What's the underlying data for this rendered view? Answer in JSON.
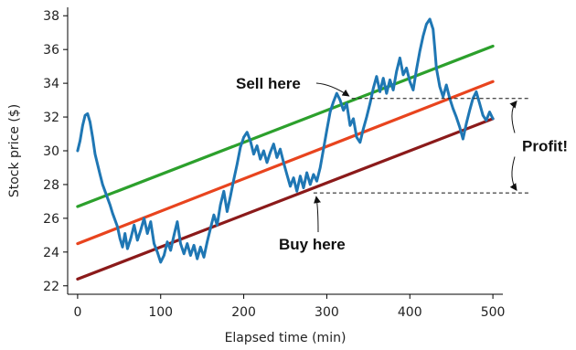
{
  "chart_data": {
    "type": "line",
    "title": "",
    "xlabel": "Elapsed time (min)",
    "ylabel": "Stock price ($)",
    "xlim": [
      -12,
      512
    ],
    "ylim": [
      21.5,
      38.5
    ],
    "xticks": [
      0,
      100,
      200,
      300,
      400,
      500
    ],
    "yticks": [
      22,
      24,
      26,
      28,
      30,
      32,
      34,
      36,
      38
    ],
    "grid": false,
    "series": [
      {
        "color": "#1f77b4",
        "x": [
          0,
          3,
          6,
          9,
          12,
          15,
          18,
          21,
          24,
          27,
          30,
          33,
          36,
          39,
          42,
          45,
          48,
          51,
          54,
          57,
          60,
          64,
          68,
          72,
          76,
          80,
          84,
          88,
          92,
          96,
          100,
          104,
          108,
          112,
          116,
          120,
          124,
          128,
          132,
          136,
          140,
          144,
          148,
          152,
          156,
          160,
          164,
          168,
          172,
          176,
          180,
          184,
          188,
          192,
          196,
          200,
          204,
          208,
          212,
          216,
          220,
          224,
          228,
          232,
          236,
          240,
          244,
          248,
          252,
          256,
          260,
          264,
          268,
          272,
          276,
          280,
          284,
          288,
          292,
          296,
          300,
          304,
          308,
          312,
          316,
          320,
          324,
          328,
          332,
          336,
          340,
          344,
          348,
          352,
          356,
          360,
          364,
          368,
          372,
          376,
          380,
          384,
          388,
          392,
          396,
          400,
          404,
          408,
          412,
          416,
          420,
          424,
          428,
          430,
          432,
          436,
          440,
          444,
          448,
          452,
          456,
          460,
          464,
          468,
          472,
          476,
          480,
          484,
          488,
          492,
          496,
          500
        ],
        "values": [
          30.0,
          30.6,
          31.5,
          32.1,
          32.2,
          31.7,
          30.8,
          29.8,
          29.2,
          28.6,
          28.0,
          27.6,
          27.2,
          26.8,
          26.3,
          25.9,
          25.5,
          24.8,
          24.3,
          25.1,
          24.2,
          24.8,
          25.6,
          24.7,
          25.3,
          26.0,
          25.1,
          25.8,
          24.5,
          24.0,
          23.4,
          23.8,
          24.6,
          24.1,
          25.0,
          25.8,
          24.5,
          23.9,
          24.5,
          23.8,
          24.4,
          23.6,
          24.3,
          23.7,
          24.6,
          25.4,
          26.2,
          25.6,
          26.8,
          27.6,
          26.4,
          27.3,
          28.3,
          29.2,
          30.2,
          30.8,
          31.1,
          30.6,
          29.8,
          30.3,
          29.5,
          30.0,
          29.3,
          29.9,
          30.4,
          29.6,
          30.1,
          29.3,
          28.6,
          27.9,
          28.4,
          27.6,
          28.5,
          27.8,
          28.7,
          28.0,
          28.6,
          28.2,
          29.0,
          30.1,
          31.2,
          32.3,
          32.9,
          33.4,
          33.0,
          32.4,
          32.8,
          31.5,
          31.9,
          30.8,
          30.5,
          31.3,
          32.0,
          32.8,
          33.7,
          34.4,
          33.5,
          34.3,
          33.4,
          34.2,
          33.6,
          34.7,
          35.5,
          34.5,
          34.9,
          34.1,
          33.6,
          34.8,
          35.9,
          36.8,
          37.5,
          37.8,
          37.2,
          36.1,
          34.9,
          33.8,
          33.2,
          33.9,
          33.1,
          32.5,
          32.0,
          31.4,
          30.7,
          31.6,
          32.4,
          33.1,
          33.5,
          32.8,
          32.1,
          31.8,
          32.3,
          31.9
        ]
      },
      {
        "color": "#2ca02c",
        "x": [
          0,
          500
        ],
        "values": [
          26.7,
          36.2
        ]
      },
      {
        "color": "#e8441e",
        "x": [
          0,
          500
        ],
        "values": [
          24.5,
          34.1
        ]
      },
      {
        "color": "#8b1a1a",
        "x": [
          0,
          500
        ],
        "values": [
          22.4,
          31.9
        ]
      }
    ],
    "annotations": [
      {
        "text": "Sell here",
        "x": 330,
        "y": 33.3
      },
      {
        "text": "Buy here",
        "x": 284,
        "y": 27.5
      },
      {
        "text": "Profit!",
        "y_range": [
          27.5,
          33.1
        ]
      }
    ]
  }
}
